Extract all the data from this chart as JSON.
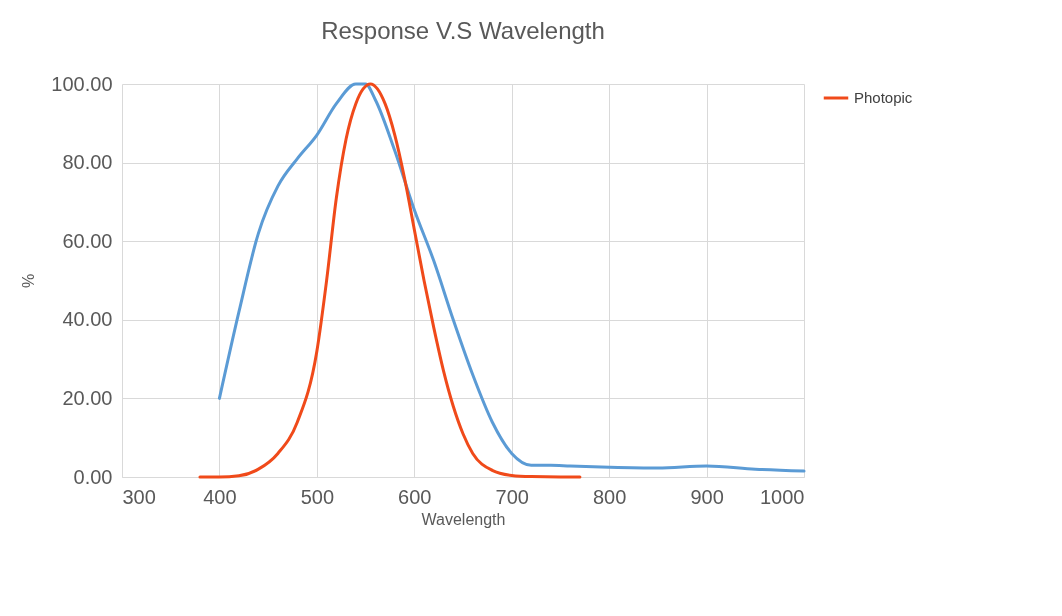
{
  "chart_data": {
    "type": "line",
    "title": "Response V.S Wavelength",
    "xlabel": "Wavelength",
    "ylabel": "%",
    "xlim": [
      300,
      1000
    ],
    "xticks": [
      300,
      400,
      500,
      600,
      700,
      800,
      900,
      1000
    ],
    "ylim": [
      0,
      100
    ],
    "yticks": [
      {
        "value": 0,
        "label": "0.00"
      },
      {
        "value": 20,
        "label": "20.00"
      },
      {
        "value": 40,
        "label": "40.00"
      },
      {
        "value": 60,
        "label": "60.00"
      },
      {
        "value": 80,
        "label": "80.00"
      },
      {
        "value": 100,
        "label": "100.00"
      }
    ],
    "grid": true,
    "legend": "right",
    "marker": "none",
    "line_style": "solid",
    "series": [
      {
        "color": "#5b9bd5",
        "x": [
          400,
          420,
          440,
          460,
          480,
          500,
          520,
          540,
          550,
          560,
          580,
          600,
          620,
          640,
          660,
          680,
          700,
          720,
          740,
          760,
          800,
          850,
          900,
          950,
          1000
        ],
        "values": [
          20,
          42,
          62,
          74,
          81,
          87,
          95,
          100,
          100,
          96,
          83,
          68,
          55,
          40,
          26,
          14,
          6,
          3,
          3,
          2.8,
          2.5,
          2.3,
          2.8,
          2,
          1.5
        ]
      },
      {
        "name": "Photopic",
        "color": "#f04a1a",
        "x": [
          380,
          400,
          420,
          440,
          460,
          480,
          500,
          510,
          520,
          530,
          540,
          555,
          570,
          580,
          590,
          600,
          610,
          620,
          630,
          640,
          650,
          660,
          680,
          700,
          720,
          750,
          770
        ],
        "values": [
          0,
          0,
          0.3,
          2,
          6,
          14,
          32,
          50,
          71,
          86,
          95,
          100,
          95,
          87,
          76,
          63,
          50,
          38,
          27,
          18,
          11,
          6,
          1.7,
          0.4,
          0.1,
          0,
          0
        ]
      }
    ]
  }
}
